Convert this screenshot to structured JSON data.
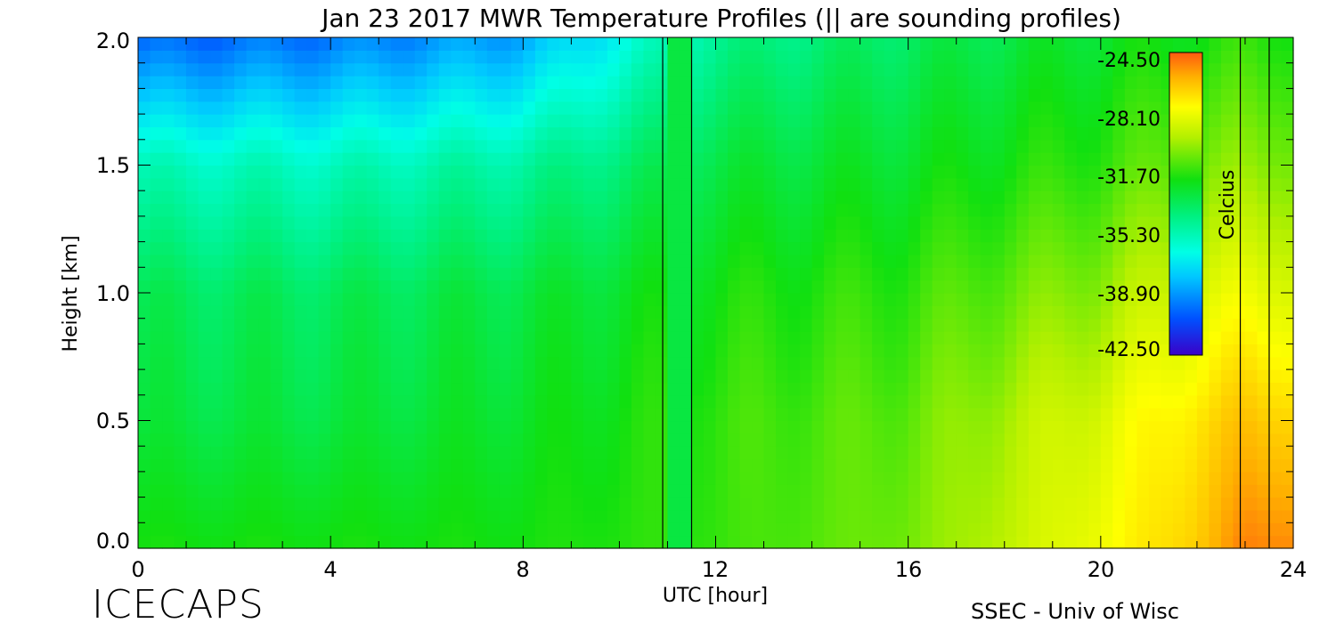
{
  "chart_data": {
    "type": "heatmap",
    "title": "Jan 23 2017 MWR Temperature Profiles (|| are sounding profiles)",
    "xlabel": "UTC [hour]",
    "ylabel": "Height [km]",
    "xlim": [
      0,
      24
    ],
    "ylim": [
      0,
      2
    ],
    "x_ticks": [
      "0",
      "4",
      "8",
      "12",
      "16",
      "20",
      "24"
    ],
    "y_ticks": [
      "0.0",
      "0.5",
      "1.0",
      "1.5",
      "2.0"
    ],
    "colorbar": {
      "label": "Celcius",
      "ticks": [
        "-24.50",
        "-28.10",
        "-31.70",
        "-35.30",
        "-38.90",
        "-42.50"
      ],
      "range": [
        -42.5,
        -24.5
      ]
    },
    "sounding_times_hours": [
      10.9,
      11.5,
      22.9,
      23.5
    ],
    "gap_hours": [
      10.9,
      11.5
    ],
    "temperature_field_celsius": {
      "note": "approximate values read from color",
      "by_time": [
        {
          "hour": 0,
          "surface": -32.0,
          "at_0_5km": -33.0,
          "at_1_0km": -33.5,
          "at_1_5km": -35.5,
          "at_2_0km": -40.0
        },
        {
          "hour": 4,
          "surface": -32.0,
          "at_0_5km": -33.0,
          "at_1_0km": -33.5,
          "at_1_5km": -35.5,
          "at_2_0km": -39.5
        },
        {
          "hour": 8,
          "surface": -32.0,
          "at_0_5km": -32.5,
          "at_1_0km": -33.0,
          "at_1_5km": -34.8,
          "at_2_0km": -38.5
        },
        {
          "hour": 12,
          "surface": -31.5,
          "at_0_5km": -31.5,
          "at_1_0km": -32.0,
          "at_1_5km": -33.0,
          "at_2_0km": -34.5
        },
        {
          "hour": 16,
          "surface": -30.5,
          "at_0_5km": -30.8,
          "at_1_0km": -31.5,
          "at_1_5km": -32.5,
          "at_2_0km": -33.5
        },
        {
          "hour": 20,
          "surface": -28.0,
          "at_0_5km": -28.5,
          "at_1_0km": -30.0,
          "at_1_5km": -31.5,
          "at_2_0km": -32.5
        },
        {
          "hour": 22,
          "surface": -26.5,
          "at_0_5km": -27.0,
          "at_1_0km": -28.5,
          "at_1_5km": -30.5,
          "at_2_0km": -32.0
        },
        {
          "hour": 23,
          "surface": -25.2,
          "at_0_5km": -26.5,
          "at_1_0km": -28.3,
          "at_1_5km": -30.2,
          "at_2_0km": -31.7
        }
      ]
    }
  },
  "footer": {
    "left_logo": "ICECAPS",
    "right_credit": "SSEC - Univ of Wisc"
  }
}
